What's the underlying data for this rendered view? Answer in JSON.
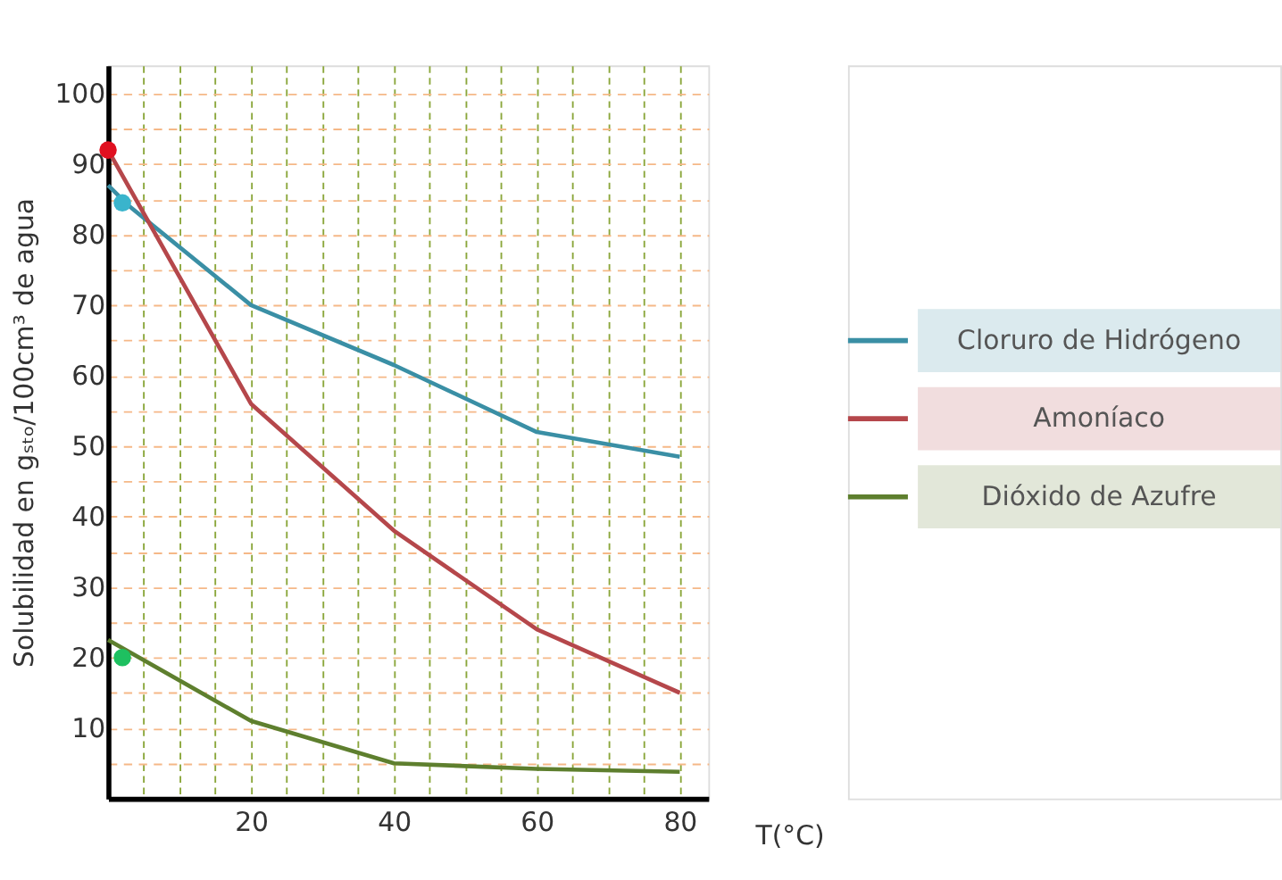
{
  "chart_data": {
    "type": "line",
    "xlabel": "T(°C)",
    "ylabel": "Solubilidad en gₛₜₒ/100cm³ de agua",
    "xlim": [
      0,
      84
    ],
    "ylim": [
      0,
      104
    ],
    "xticks": [
      {
        "value": 5,
        "label": null
      },
      {
        "value": 10,
        "label": null
      },
      {
        "value": 15,
        "label": null
      },
      20,
      {
        "value": 25,
        "label": null
      },
      {
        "value": 30,
        "label": null
      },
      {
        "value": 35,
        "label": null
      },
      40,
      {
        "value": 45,
        "label": null
      },
      {
        "value": 50,
        "label": null
      },
      {
        "value": 55,
        "label": null
      },
      60,
      {
        "value": 65,
        "label": null
      },
      {
        "value": 70,
        "label": null
      },
      {
        "value": 75,
        "label": null
      },
      80
    ],
    "yticks": [
      {
        "value": 5,
        "label": null
      },
      10,
      {
        "value": 15,
        "label": null
      },
      20,
      {
        "value": 25,
        "label": null
      },
      30,
      {
        "value": 35,
        "label": null
      },
      40,
      {
        "value": 45,
        "label": null
      },
      50,
      {
        "value": 55,
        "label": null
      },
      60,
      {
        "value": 65,
        "label": null
      },
      70,
      {
        "value": 75,
        "label": null
      },
      80,
      {
        "value": 85,
        "label": null
      },
      90,
      {
        "value": 95,
        "label": null
      },
      100
    ],
    "grid": true,
    "legend": "right",
    "marker": "none",
    "line_style": "solid",
    "series": [
      {
        "name": "Cloruro de Hidrógeno",
        "color": "#3a8fa5",
        "x": [
          0,
          3,
          20,
          40,
          60,
          80
        ],
        "values": [
          87,
          84,
          70,
          61.5,
          52,
          48.5
        ]
      },
      {
        "name": "Amoníaco",
        "color": "#b5474b",
        "x": [
          0,
          20,
          40,
          60,
          80
        ],
        "values": [
          92,
          56,
          38,
          24,
          15
        ]
      },
      {
        "name": "Dióxido de Azufre",
        "color": "#5e7f2e",
        "x": [
          0,
          20,
          40,
          60,
          80
        ],
        "values": [
          22.5,
          11,
          5,
          4.2,
          3.8
        ]
      },
      {
        "type": "scatter",
        "marker": "circle",
        "x": [
          0,
          2,
          2
        ],
        "values": [
          92,
          84.5,
          20
        ],
        "colors": [
          "#e01020",
          "#3ab4cc",
          "#1ec060"
        ]
      }
    ]
  }
}
